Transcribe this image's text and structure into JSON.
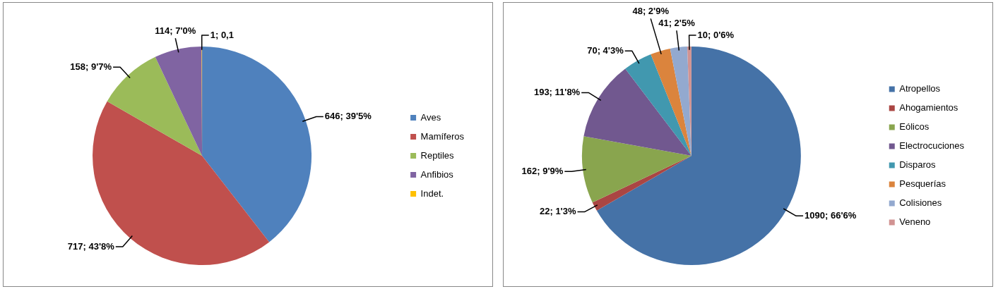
{
  "chart_data": [
    {
      "type": "pie",
      "categories": [
        "Aves",
        "Mamíferos",
        "Reptiles",
        "Anfibios",
        "Indet."
      ],
      "values": [
        646,
        717,
        158,
        114,
        1
      ],
      "colors": [
        "#4f81bd",
        "#c0504d",
        "#9bbb59",
        "#8064a2",
        "#ffc000"
      ],
      "value_labels": [
        "646; 39'5%",
        "717; 43'8%",
        "158; 9'7%",
        "114; 7'0%",
        "1; 0,1"
      ],
      "legend": "right"
    },
    {
      "type": "pie",
      "categories": [
        "Atropellos",
        "Ahogamientos",
        "Eólicos",
        "Electrocuciones",
        "Disparos",
        "Pesquerías",
        "Colisiones",
        "Veneno"
      ],
      "values": [
        1090,
        22,
        162,
        193,
        70,
        48,
        41,
        10
      ],
      "colors": [
        "#4572a7",
        "#aa4643",
        "#89a54e",
        "#71588f",
        "#4198af",
        "#db843d",
        "#93a9cf",
        "#d19392"
      ],
      "value_labels": [
        "1090; 66'6%",
        "22; 1'3%",
        "162; 9'9%",
        "193; 11'8%",
        "70; 4'3%",
        "48; 2'9%",
        "41; 2'5%",
        "10; 0'6%"
      ],
      "legend": "right"
    }
  ]
}
